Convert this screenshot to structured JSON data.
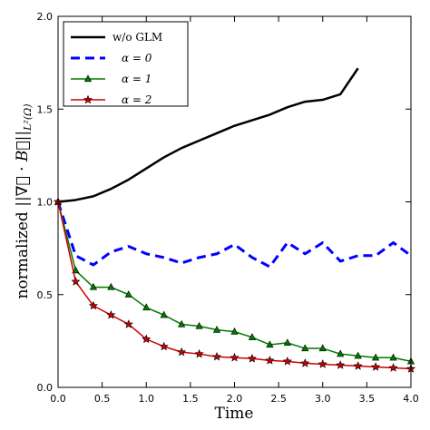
{
  "chart_data": {
    "type": "line",
    "xlabel": "Time",
    "ylabel_prefix": "normalized ||",
    "ylabel_expr": "∇⃗ · B⃗",
    "ylabel_suffix": "||",
    "ylabel_sub": "L²(Ω)",
    "xlim": [
      0.0,
      4.0
    ],
    "ylim": [
      0.0,
      2.0
    ],
    "xticks": [
      "0.0",
      "0.5",
      "1.0",
      "1.5",
      "2.0",
      "2.5",
      "3.0",
      "3.5",
      "4.0"
    ],
    "yticks": [
      "0.0",
      "0.5",
      "1.0",
      "1.5",
      "2.0"
    ],
    "legend_position": "top-left",
    "series": [
      {
        "name": "w/o GLM",
        "color": "#000000",
        "style": "solid",
        "marker": "none",
        "x": [
          0.0,
          0.2,
          0.4,
          0.6,
          0.8,
          1.0,
          1.2,
          1.4,
          1.6,
          1.8,
          2.0,
          2.2,
          2.4,
          2.6,
          2.8,
          3.0,
          3.2,
          3.4
        ],
        "y": [
          1.0,
          1.01,
          1.03,
          1.07,
          1.12,
          1.18,
          1.24,
          1.29,
          1.33,
          1.37,
          1.41,
          1.44,
          1.47,
          1.51,
          1.54,
          1.55,
          1.58,
          1.72
        ]
      },
      {
        "name": "α = 0",
        "color": "#0000ff",
        "style": "dashed",
        "marker": "none",
        "x": [
          0.0,
          0.2,
          0.4,
          0.6,
          0.8,
          1.0,
          1.2,
          1.4,
          1.6,
          1.8,
          2.0,
          2.2,
          2.4,
          2.6,
          2.8,
          3.0,
          3.2,
          3.4,
          3.6,
          3.8,
          4.0
        ],
        "y": [
          1.0,
          0.71,
          0.66,
          0.73,
          0.76,
          0.72,
          0.7,
          0.67,
          0.7,
          0.72,
          0.77,
          0.7,
          0.65,
          0.78,
          0.72,
          0.78,
          0.68,
          0.71,
          0.71,
          0.78,
          0.71
        ]
      },
      {
        "name": "α = 1",
        "color": "#007a00",
        "style": "solid",
        "marker": "triangle",
        "x": [
          0.0,
          0.2,
          0.4,
          0.6,
          0.8,
          1.0,
          1.2,
          1.4,
          1.6,
          1.8,
          2.0,
          2.2,
          2.4,
          2.6,
          2.8,
          3.0,
          3.2,
          3.4,
          3.6,
          3.8,
          4.0
        ],
        "y": [
          1.0,
          0.63,
          0.54,
          0.54,
          0.5,
          0.43,
          0.39,
          0.34,
          0.33,
          0.31,
          0.3,
          0.27,
          0.23,
          0.24,
          0.21,
          0.21,
          0.18,
          0.17,
          0.16,
          0.16,
          0.14
        ]
      },
      {
        "name": "α = 2",
        "color": "#cc0000",
        "style": "solid",
        "marker": "star",
        "x": [
          0.0,
          0.2,
          0.4,
          0.6,
          0.8,
          1.0,
          1.2,
          1.4,
          1.6,
          1.8,
          2.0,
          2.2,
          2.4,
          2.6,
          2.8,
          3.0,
          3.2,
          3.4,
          3.6,
          3.8,
          4.0
        ],
        "y": [
          1.0,
          0.57,
          0.44,
          0.39,
          0.34,
          0.26,
          0.22,
          0.19,
          0.18,
          0.165,
          0.16,
          0.155,
          0.145,
          0.14,
          0.13,
          0.125,
          0.12,
          0.115,
          0.11,
          0.105,
          0.1
        ]
      }
    ]
  }
}
